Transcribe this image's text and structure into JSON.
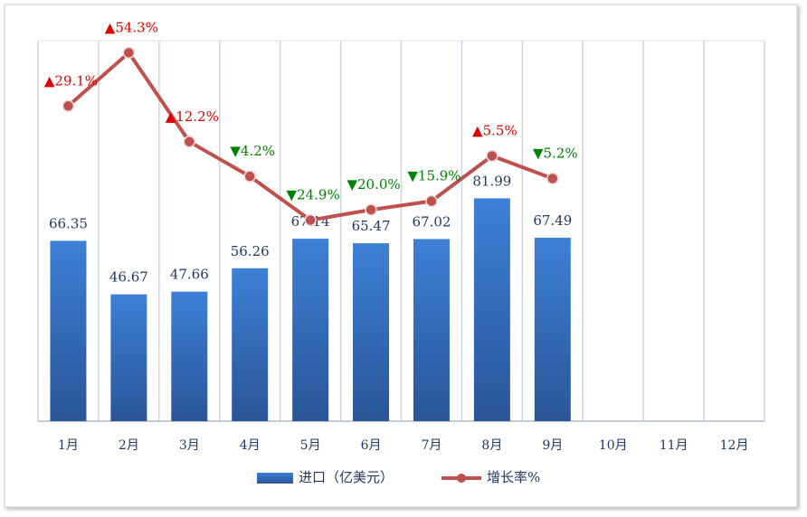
{
  "chart_data": {
    "type": "bar",
    "categories": [
      "1月",
      "2月",
      "3月",
      "4月",
      "5月",
      "6月",
      "7月",
      "8月",
      "9月",
      "10月",
      "11月",
      "12月"
    ],
    "series": [
      {
        "name": "进口（亿美元）",
        "type": "bar",
        "color": "#2f65b4",
        "values": [
          66.35,
          46.67,
          47.66,
          56.26,
          67.14,
          65.47,
          67.02,
          81.99,
          67.49,
          null,
          null,
          null
        ]
      },
      {
        "name": "增长率%",
        "type": "line",
        "axis": "y2",
        "color": "#c0504d",
        "values": [
          29.1,
          54.3,
          12.2,
          -4.2,
          -24.9,
          -20.0,
          -15.9,
          5.5,
          -5.2,
          null,
          null,
          null
        ],
        "value_labels": [
          "▲29.1%",
          "▲54.3%",
          "▲12.2%",
          "▼4.2%",
          "▼24.9%",
          "▼20.0%",
          "▼15.9%",
          "▲5.5%",
          "▼5.2%",
          null,
          null,
          null
        ]
      }
    ],
    "ylim": [
      0,
      140
    ],
    "y2lim": [
      -120,
      60
    ],
    "grid": true,
    "legend": "bottom"
  }
}
